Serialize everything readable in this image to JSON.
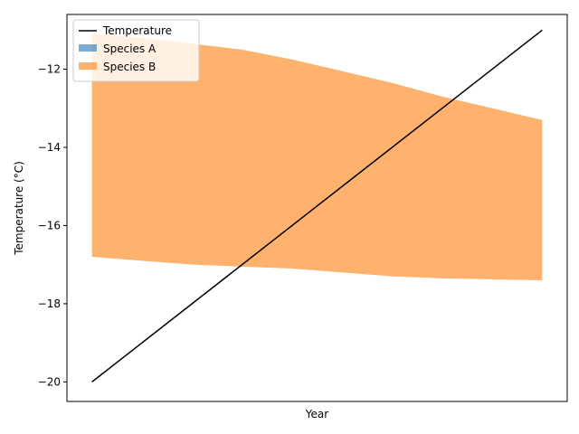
{
  "chart_data": {
    "type": "area",
    "title": "",
    "xlabel": "Year",
    "ylabel": "Temperature (°C)",
    "xlim": [
      0,
      10
    ],
    "ylim": [
      -20.5,
      -10.6
    ],
    "yticks": [
      -20,
      -18,
      -16,
      -14,
      -12
    ],
    "x_ticks_shown": false,
    "grid": false,
    "legend_position": "top-left",
    "x": [
      1,
      2,
      3,
      4,
      5,
      6,
      7,
      8,
      9
    ],
    "temperature": {
      "name": "Temperature",
      "color": "#000000",
      "x": [
        0.5,
        9.5
      ],
      "values": [
        -20,
        -11
      ]
    },
    "series": [
      {
        "name": "Species A",
        "color": "#1f77b4",
        "lower": [
          -16.8,
          -16.9,
          -17.0,
          -17.05,
          -17.1,
          -17.2,
          -17.3,
          -17.35,
          -17.4
        ],
        "upper": [
          -16.8,
          -16.9,
          -17.0,
          -17.05,
          -17.1,
          -17.2,
          -17.3,
          -17.35,
          -17.4
        ]
      },
      {
        "name": "Species B",
        "color": "#ff7f0e",
        "lower": [
          -16.8,
          -16.9,
          -17.0,
          -17.05,
          -17.1,
          -17.2,
          -17.3,
          -17.35,
          -17.4
        ],
        "upper": [
          -11.1,
          -11.2,
          -11.35,
          -11.5,
          -11.75,
          -12.05,
          -12.35,
          -12.7,
          -13.3
        ]
      }
    ],
    "area_x": [
      0.5,
      1.5,
      2.5,
      3.5,
      4.5,
      5.5,
      6.5,
      7.5,
      9.5
    ]
  }
}
